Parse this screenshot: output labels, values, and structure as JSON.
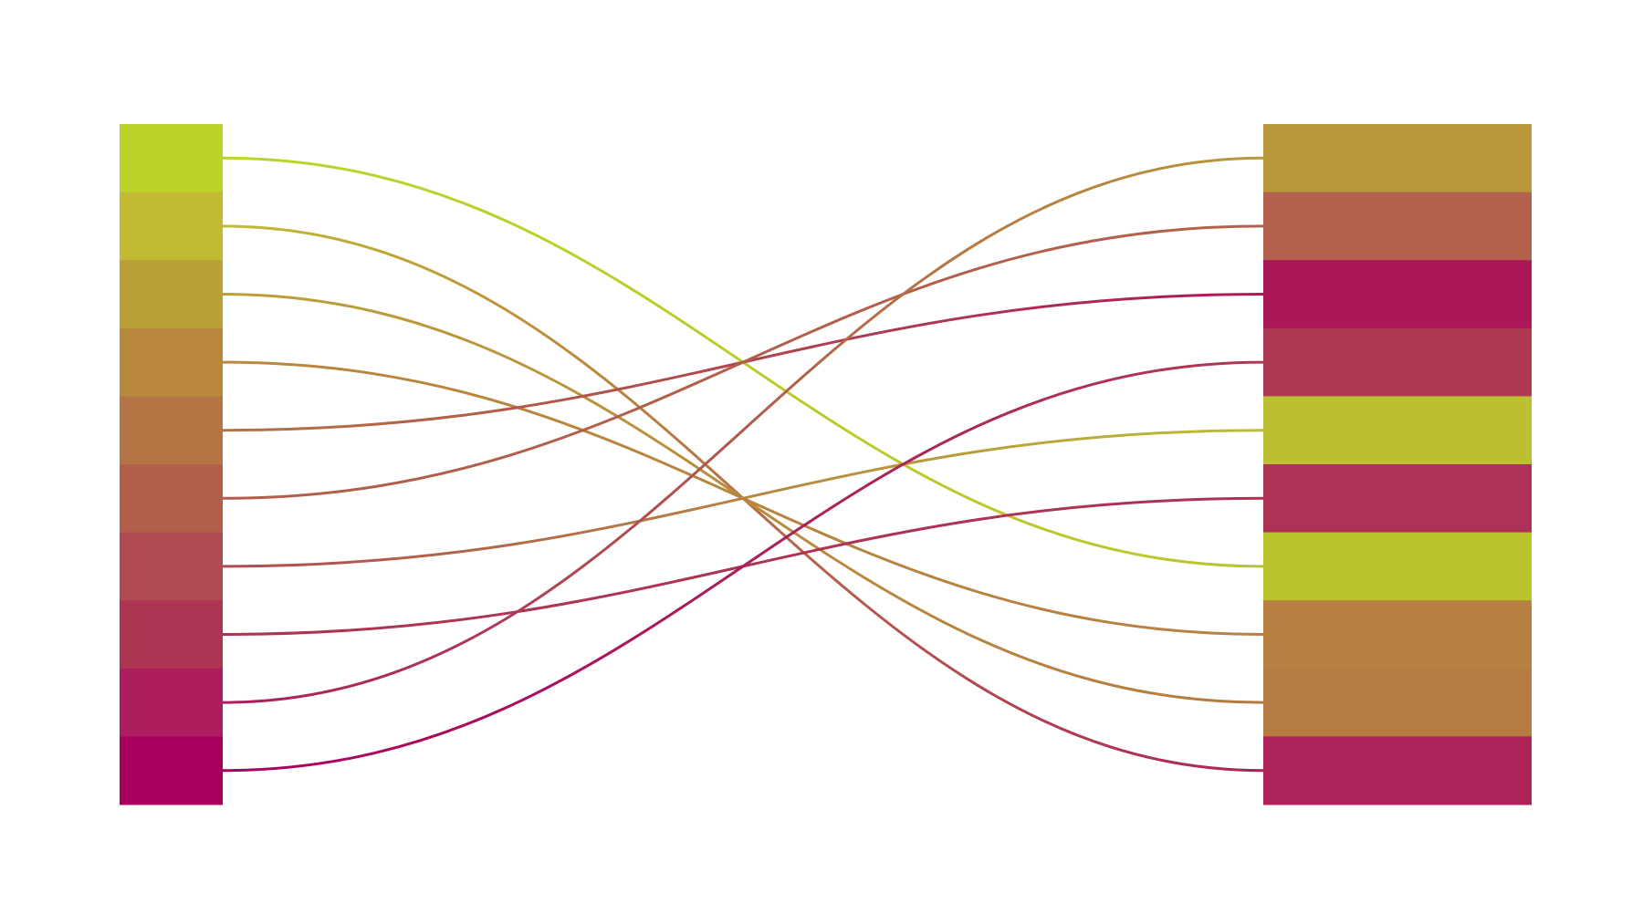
{
  "diagram": {
    "type": "bipartite-connection",
    "left_column": {
      "blocks": [
        {
          "color": "#bcd32a"
        },
        {
          "color": "#c2ba32"
        },
        {
          "color": "#bba038"
        },
        {
          "color": "#b8883d"
        },
        {
          "color": "#b57443"
        },
        {
          "color": "#b15e4a"
        },
        {
          "color": "#af4a51"
        },
        {
          "color": "#ae3453"
        },
        {
          "color": "#ab1d5d"
        },
        {
          "color": "#a9005f"
        }
      ]
    },
    "right_column": {
      "blocks": [
        {
          "color": "#b8983a"
        },
        {
          "color": "#b2614d"
        },
        {
          "color": "#aa1859"
        },
        {
          "color": "#ae3953"
        },
        {
          "color": "#bcbf32"
        },
        {
          "color": "#ad3255"
        },
        {
          "color": "#bcc42d"
        },
        {
          "color": "#b78142"
        },
        {
          "color": "#b57b41"
        },
        {
          "color": "#ad2259"
        }
      ]
    },
    "connections": [
      {
        "from": 0,
        "to": 6
      },
      {
        "from": 1,
        "to": 9
      },
      {
        "from": 2,
        "to": 8
      },
      {
        "from": 3,
        "to": 7
      },
      {
        "from": 4,
        "to": 2
      },
      {
        "from": 5,
        "to": 1
      },
      {
        "from": 6,
        "to": 4
      },
      {
        "from": 7,
        "to": 5
      },
      {
        "from": 8,
        "to": 0
      },
      {
        "from": 9,
        "to": 3
      }
    ]
  }
}
